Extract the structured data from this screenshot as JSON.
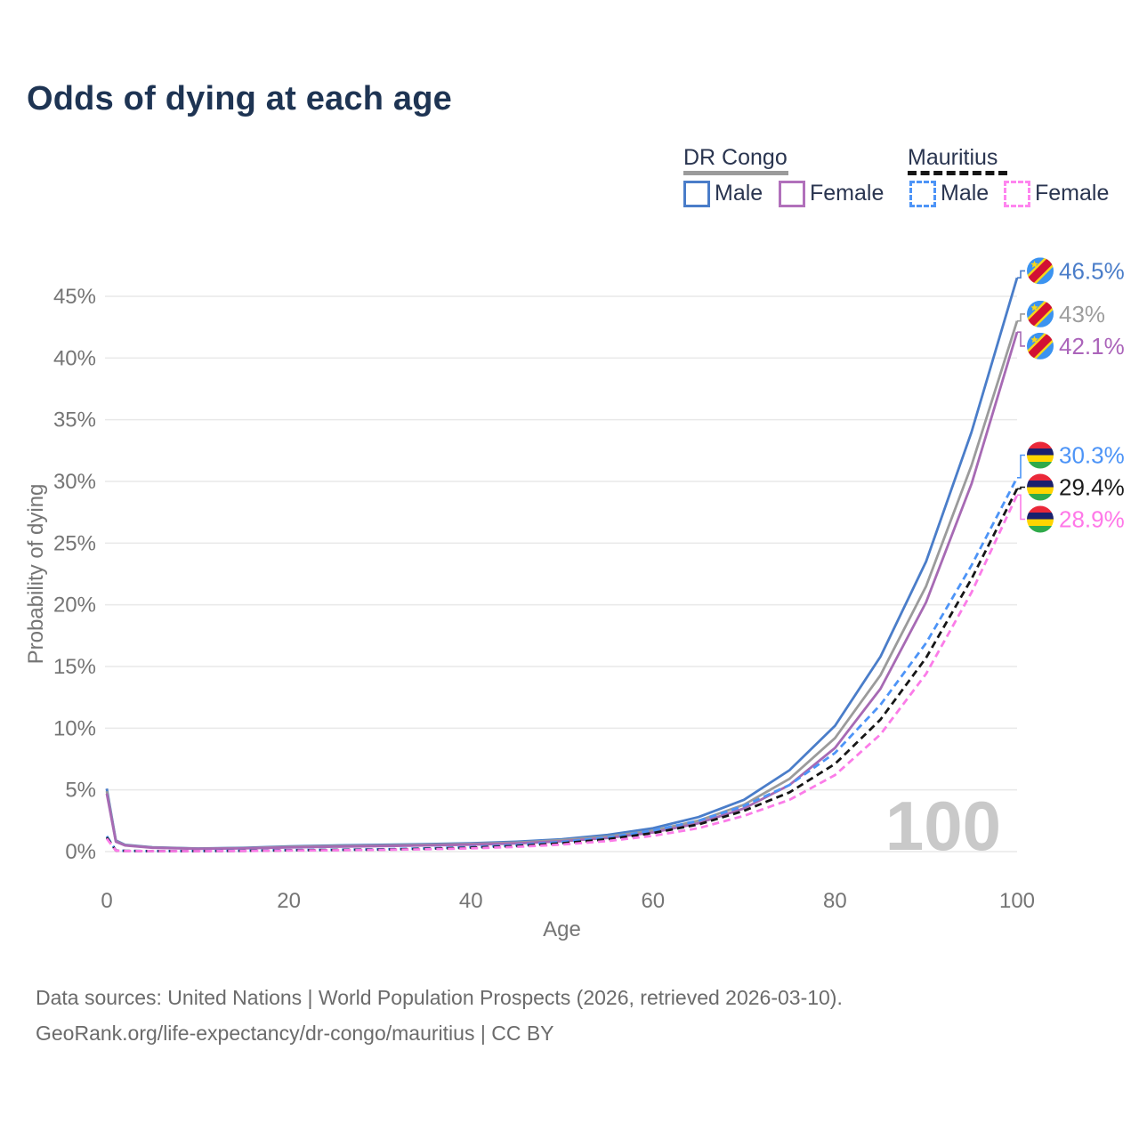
{
  "title": "Odds of dying at each age",
  "legend": {
    "groups": [
      {
        "name": "DR Congo",
        "line_style": "solid",
        "line_color": "#9b9b9b",
        "items": [
          {
            "label": "Male",
            "color": "#4a7dc9"
          },
          {
            "label": "Female",
            "color": "#b170bb"
          }
        ]
      },
      {
        "name": "Mauritius",
        "line_style": "dashed",
        "line_color": "#161616",
        "items": [
          {
            "label": "Male",
            "color": "#4d94f7"
          },
          {
            "label": "Female",
            "color": "#ff85ef"
          }
        ]
      }
    ]
  },
  "chart_data": {
    "type": "line",
    "title": "Odds of dying at each age",
    "xlabel": "Age",
    "ylabel": "Probability of dying",
    "xlim": [
      0,
      100
    ],
    "ylim": [
      0,
      45
    ],
    "xticks": [
      "0",
      "20",
      "40",
      "60",
      "80",
      "100"
    ],
    "yticks": [
      0,
      5,
      10,
      15,
      20,
      25,
      30,
      35,
      40,
      45
    ],
    "ytick_suffix": "%",
    "grid": "horizontal",
    "hover_age_watermark": "100",
    "x": [
      0,
      1,
      2,
      5,
      10,
      15,
      20,
      25,
      30,
      35,
      40,
      45,
      50,
      55,
      60,
      65,
      70,
      75,
      80,
      85,
      90,
      95,
      100
    ],
    "series": [
      {
        "name": "DR Congo — Male",
        "country": "DR Congo",
        "style": "solid",
        "color": "#4a7dc9",
        "label_color": "#4a7dc9",
        "flag_icon": "dr-congo-flag-icon",
        "end_label": "46.5%",
        "values": [
          5.1,
          0.9,
          0.55,
          0.35,
          0.25,
          0.3,
          0.42,
          0.5,
          0.55,
          0.6,
          0.68,
          0.8,
          1.0,
          1.35,
          1.9,
          2.8,
          4.2,
          6.6,
          10.2,
          15.8,
          23.5,
          34.0,
          46.5
        ]
      },
      {
        "name": "DR Congo — Both sexes",
        "country": "DR Congo",
        "style": "solid",
        "color": "#9b9b9b",
        "label_color": "#9e9e9e",
        "flag_icon": "dr-congo-flag-icon",
        "end_label": "43%",
        "values": [
          4.9,
          0.85,
          0.52,
          0.33,
          0.24,
          0.28,
          0.38,
          0.45,
          0.5,
          0.55,
          0.62,
          0.73,
          0.92,
          1.22,
          1.7,
          2.5,
          3.8,
          5.9,
          9.2,
          14.3,
          21.5,
          31.3,
          43.0
        ]
      },
      {
        "name": "DR Congo — Female",
        "country": "DR Congo",
        "style": "solid",
        "color": "#a76ab4",
        "label_color": "#ab64ba",
        "flag_icon": "dr-congo-flag-icon",
        "end_label": "42.1%",
        "values": [
          4.7,
          0.8,
          0.5,
          0.31,
          0.22,
          0.26,
          0.34,
          0.4,
          0.45,
          0.5,
          0.56,
          0.66,
          0.84,
          1.1,
          1.55,
          2.3,
          3.5,
          5.4,
          8.4,
          13.2,
          20.2,
          29.8,
          42.1
        ]
      },
      {
        "name": "Mauritius — Male",
        "country": "Mauritius",
        "style": "dashed",
        "color": "#4d94f7",
        "label_color": "#4d94f7",
        "flag_icon": "mauritius-flag-icon",
        "end_label": "30.3%",
        "values": [
          1.25,
          0.1,
          0.06,
          0.04,
          0.04,
          0.07,
          0.12,
          0.15,
          0.19,
          0.26,
          0.36,
          0.52,
          0.78,
          1.15,
          1.7,
          2.5,
          3.7,
          5.4,
          8.0,
          11.9,
          16.9,
          23.2,
          30.3
        ]
      },
      {
        "name": "Mauritius — Both sexes",
        "country": "Mauritius",
        "style": "dashed",
        "color": "#161616",
        "label_color": "#1a1a1a",
        "flag_icon": "mauritius-flag-icon",
        "end_label": "29.4%",
        "values": [
          1.15,
          0.09,
          0.055,
          0.038,
          0.038,
          0.06,
          0.1,
          0.13,
          0.16,
          0.22,
          0.31,
          0.45,
          0.67,
          1.0,
          1.5,
          2.2,
          3.3,
          4.8,
          7.1,
          10.7,
          15.7,
          22.1,
          29.4
        ]
      },
      {
        "name": "Mauritius — Female",
        "country": "Mauritius",
        "style": "dashed",
        "color": "#fb7ce8",
        "label_color": "#ff78e8",
        "flag_icon": "mauritius-flag-icon",
        "end_label": "28.9%",
        "values": [
          1.05,
          0.08,
          0.05,
          0.035,
          0.035,
          0.05,
          0.085,
          0.11,
          0.14,
          0.19,
          0.26,
          0.38,
          0.57,
          0.85,
          1.28,
          1.9,
          2.9,
          4.2,
          6.2,
          9.5,
          14.4,
          21.0,
          28.9
        ]
      }
    ]
  },
  "footer": {
    "line1": "Data sources: United Nations | World Population Prospects (2026, retrieved 2026-03-10).",
    "line2": "GeoRank.org/life-expectancy/dr-congo/mauritius | CC BY"
  }
}
